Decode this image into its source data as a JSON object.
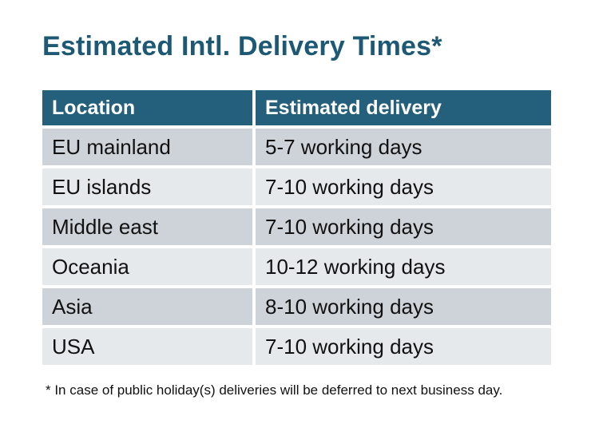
{
  "title": "Estimated Intl. Delivery Times*",
  "table": {
    "headers": [
      "Location",
      "Estimated delivery"
    ],
    "rows": [
      {
        "location": "EU mainland",
        "delivery": "5-7 working days"
      },
      {
        "location": "EU islands",
        "delivery": "7-10 working days"
      },
      {
        "location": "Middle east",
        "delivery": "7-10 working days"
      },
      {
        "location": "Oceania",
        "delivery": "10-12 working days"
      },
      {
        "location": "Asia",
        "delivery": "8-10 working days"
      },
      {
        "location": "USA",
        "delivery": "7-10 working days"
      }
    ]
  },
  "footnote": "* In case of public holiday(s) deliveries will be deferred to next business day.",
  "colors": {
    "title_text": "#1d5974",
    "header_bg": "#24607c",
    "header_text": "#ffffff",
    "row_dark_bg": "#ced3d9",
    "row_light_bg": "#e6e9eb",
    "body_text": "#111111",
    "page_bg": "#ffffff"
  }
}
